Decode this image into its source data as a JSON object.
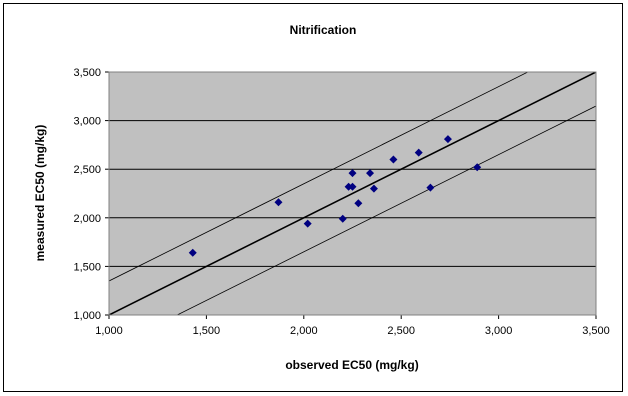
{
  "chart_data": {
    "type": "scatter",
    "title": "Nitrification",
    "xlabel": "observed EC50 (mg/kg)",
    "ylabel": "measured EC50 (mg/kg)",
    "xlim": [
      1000,
      3500
    ],
    "ylim": [
      1000,
      3500
    ],
    "x_ticks": [
      1000,
      1500,
      2000,
      2500,
      3000,
      3500
    ],
    "y_ticks": [
      1000,
      1500,
      2000,
      2500,
      3000,
      3500
    ],
    "x_tick_labels": [
      "1,000",
      "1,500",
      "2,000",
      "2,500",
      "3,000",
      "3,500"
    ],
    "y_tick_labels": [
      "1,000",
      "1,500",
      "2,000",
      "2,500",
      "3,000",
      "3,500"
    ],
    "grid": "horizontal",
    "legend": "none",
    "series": [
      {
        "x": [
          1430,
          1870,
          2020,
          2200,
          2230,
          2250,
          2250,
          2280,
          2340,
          2360,
          2460,
          2590,
          2650,
          2740,
          2890
        ],
        "y": [
          1640,
          2160,
          1940,
          1990,
          2320,
          2320,
          2460,
          2150,
          2460,
          2300,
          2600,
          2670,
          2310,
          2810,
          2520
        ],
        "color": "#000080",
        "marker": "diamond"
      }
    ],
    "reference_lines": [
      {
        "x": [
          1000,
          3500
        ],
        "y": [
          1000,
          3500
        ],
        "style": "solid",
        "color": "#000000"
      },
      {
        "x": [
          1000,
          3500
        ],
        "y": [
          1350,
          3850
        ],
        "style": "thin",
        "color": "#000000"
      },
      {
        "x": [
          1000,
          3500
        ],
        "y": [
          650,
          3150
        ],
        "style": "thin",
        "color": "#000000"
      }
    ],
    "colors": {
      "plot_background": "#c0c0c0",
      "gridline": "#000000",
      "marker": "#000080"
    }
  }
}
